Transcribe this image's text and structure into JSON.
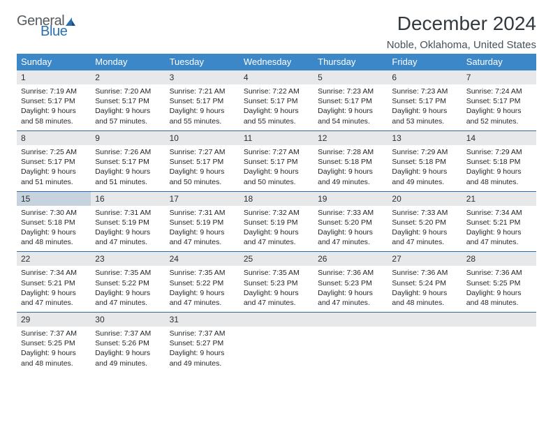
{
  "logo": {
    "word1": "General",
    "word2": "Blue"
  },
  "title": "December 2024",
  "location": "Noble, Oklahoma, United States",
  "colors": {
    "header_bg": "#3b87c8",
    "header_fg": "#ffffff",
    "daybar_bg": "#e7e8ea",
    "today_bg": "#c6d3de",
    "rule": "#2f6aa2",
    "text": "#222629",
    "logo_gray": "#555a5e",
    "logo_blue": "#2a6fb3"
  },
  "weekdays": [
    "Sunday",
    "Monday",
    "Tuesday",
    "Wednesday",
    "Thursday",
    "Friday",
    "Saturday"
  ],
  "today_day": 15,
  "days": [
    {
      "n": 1,
      "sunrise": "7:19 AM",
      "sunset": "5:17 PM",
      "daylight": "9 hours and 58 minutes."
    },
    {
      "n": 2,
      "sunrise": "7:20 AM",
      "sunset": "5:17 PM",
      "daylight": "9 hours and 57 minutes."
    },
    {
      "n": 3,
      "sunrise": "7:21 AM",
      "sunset": "5:17 PM",
      "daylight": "9 hours and 55 minutes."
    },
    {
      "n": 4,
      "sunrise": "7:22 AM",
      "sunset": "5:17 PM",
      "daylight": "9 hours and 55 minutes."
    },
    {
      "n": 5,
      "sunrise": "7:23 AM",
      "sunset": "5:17 PM",
      "daylight": "9 hours and 54 minutes."
    },
    {
      "n": 6,
      "sunrise": "7:23 AM",
      "sunset": "5:17 PM",
      "daylight": "9 hours and 53 minutes."
    },
    {
      "n": 7,
      "sunrise": "7:24 AM",
      "sunset": "5:17 PM",
      "daylight": "9 hours and 52 minutes."
    },
    {
      "n": 8,
      "sunrise": "7:25 AM",
      "sunset": "5:17 PM",
      "daylight": "9 hours and 51 minutes."
    },
    {
      "n": 9,
      "sunrise": "7:26 AM",
      "sunset": "5:17 PM",
      "daylight": "9 hours and 51 minutes."
    },
    {
      "n": 10,
      "sunrise": "7:27 AM",
      "sunset": "5:17 PM",
      "daylight": "9 hours and 50 minutes."
    },
    {
      "n": 11,
      "sunrise": "7:27 AM",
      "sunset": "5:17 PM",
      "daylight": "9 hours and 50 minutes."
    },
    {
      "n": 12,
      "sunrise": "7:28 AM",
      "sunset": "5:18 PM",
      "daylight": "9 hours and 49 minutes."
    },
    {
      "n": 13,
      "sunrise": "7:29 AM",
      "sunset": "5:18 PM",
      "daylight": "9 hours and 49 minutes."
    },
    {
      "n": 14,
      "sunrise": "7:29 AM",
      "sunset": "5:18 PM",
      "daylight": "9 hours and 48 minutes."
    },
    {
      "n": 15,
      "sunrise": "7:30 AM",
      "sunset": "5:18 PM",
      "daylight": "9 hours and 48 minutes."
    },
    {
      "n": 16,
      "sunrise": "7:31 AM",
      "sunset": "5:19 PM",
      "daylight": "9 hours and 47 minutes."
    },
    {
      "n": 17,
      "sunrise": "7:31 AM",
      "sunset": "5:19 PM",
      "daylight": "9 hours and 47 minutes."
    },
    {
      "n": 18,
      "sunrise": "7:32 AM",
      "sunset": "5:19 PM",
      "daylight": "9 hours and 47 minutes."
    },
    {
      "n": 19,
      "sunrise": "7:33 AM",
      "sunset": "5:20 PM",
      "daylight": "9 hours and 47 minutes."
    },
    {
      "n": 20,
      "sunrise": "7:33 AM",
      "sunset": "5:20 PM",
      "daylight": "9 hours and 47 minutes."
    },
    {
      "n": 21,
      "sunrise": "7:34 AM",
      "sunset": "5:21 PM",
      "daylight": "9 hours and 47 minutes."
    },
    {
      "n": 22,
      "sunrise": "7:34 AM",
      "sunset": "5:21 PM",
      "daylight": "9 hours and 47 minutes."
    },
    {
      "n": 23,
      "sunrise": "7:35 AM",
      "sunset": "5:22 PM",
      "daylight": "9 hours and 47 minutes."
    },
    {
      "n": 24,
      "sunrise": "7:35 AM",
      "sunset": "5:22 PM",
      "daylight": "9 hours and 47 minutes."
    },
    {
      "n": 25,
      "sunrise": "7:35 AM",
      "sunset": "5:23 PM",
      "daylight": "9 hours and 47 minutes."
    },
    {
      "n": 26,
      "sunrise": "7:36 AM",
      "sunset": "5:23 PM",
      "daylight": "9 hours and 47 minutes."
    },
    {
      "n": 27,
      "sunrise": "7:36 AM",
      "sunset": "5:24 PM",
      "daylight": "9 hours and 48 minutes."
    },
    {
      "n": 28,
      "sunrise": "7:36 AM",
      "sunset": "5:25 PM",
      "daylight": "9 hours and 48 minutes."
    },
    {
      "n": 29,
      "sunrise": "7:37 AM",
      "sunset": "5:25 PM",
      "daylight": "9 hours and 48 minutes."
    },
    {
      "n": 30,
      "sunrise": "7:37 AM",
      "sunset": "5:26 PM",
      "daylight": "9 hours and 49 minutes."
    },
    {
      "n": 31,
      "sunrise": "7:37 AM",
      "sunset": "5:27 PM",
      "daylight": "9 hours and 49 minutes."
    }
  ],
  "labels": {
    "sunrise": "Sunrise:",
    "sunset": "Sunset:",
    "daylight": "Daylight:"
  }
}
